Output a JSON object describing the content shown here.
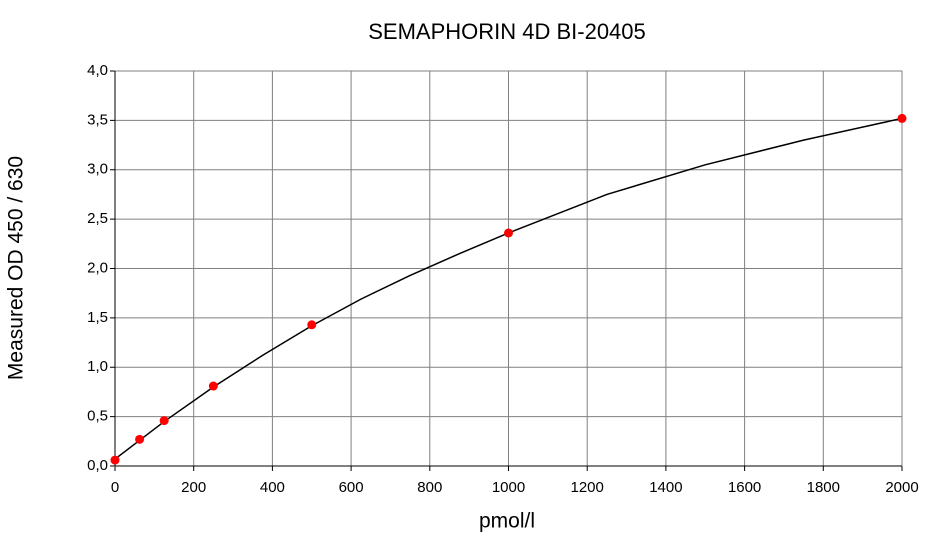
{
  "chart_data": {
    "type": "scatter",
    "title": "SEMAPHORIN 4D BI-20405",
    "x_label": "pmol/l",
    "y_label": "Measured OD 450 / 630",
    "xlim": [
      0,
      2000
    ],
    "xticks": [
      0,
      200,
      400,
      600,
      800,
      1000,
      1200,
      1400,
      1600,
      1800,
      2000
    ],
    "ylim": [
      0,
      4
    ],
    "yticks": [
      {
        "value": 0,
        "label": "0,0"
      },
      {
        "value": 0.5,
        "label": "0,5"
      },
      {
        "value": 1,
        "label": "1,0"
      },
      {
        "value": 1.5,
        "label": "1,5"
      },
      {
        "value": 2,
        "label": "2,0"
      },
      {
        "value": 2.5,
        "label": "2,5"
      },
      {
        "value": 3,
        "label": "3,0"
      },
      {
        "value": 3.5,
        "label": "3,5"
      },
      {
        "value": 4,
        "label": "4,0"
      }
    ],
    "grid": true,
    "series": [
      {
        "style": "line",
        "color": "#000000",
        "x": [
          0,
          62.5,
          125,
          250,
          375,
          500,
          625,
          750,
          875,
          1000,
          1250,
          1500,
          1750,
          2000
        ],
        "values": [
          0.07,
          0.26,
          0.45,
          0.8,
          1.12,
          1.42,
          1.69,
          1.93,
          2.15,
          2.36,
          2.75,
          3.05,
          3.3,
          3.52
        ]
      },
      {
        "style": "marker",
        "color": "#ff0000",
        "x": [
          0,
          62.5,
          125,
          250,
          500,
          1000,
          2000
        ],
        "values": [
          0.06,
          0.27,
          0.46,
          0.81,
          1.43,
          2.36,
          3.52
        ]
      }
    ]
  }
}
